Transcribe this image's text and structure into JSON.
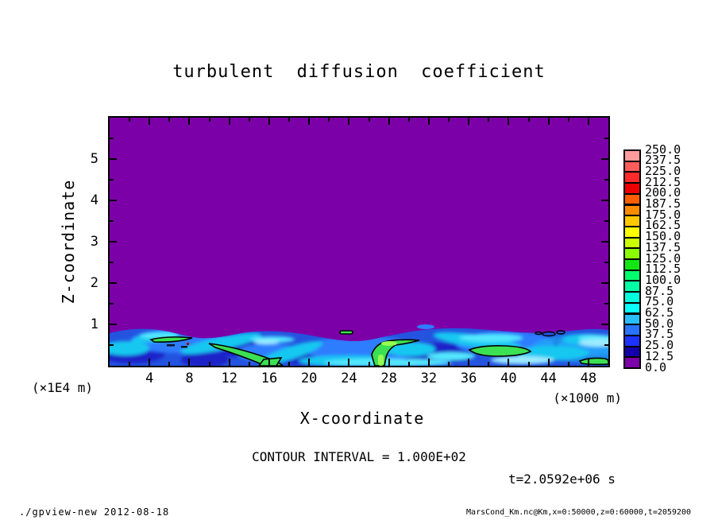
{
  "page": {
    "background": "#FFFFFF"
  },
  "chart_data": {
    "type": "filled-contour",
    "title": "turbulent diffusion coefficient",
    "x_axis": {
      "label": "X-coordinate",
      "unit_label": "(×1000 m)",
      "range": [
        0,
        50
      ],
      "major_ticks": [
        4,
        8,
        12,
        16,
        20,
        24,
        28,
        32,
        36,
        40,
        44,
        48
      ],
      "minor_step": 2
    },
    "y_axis": {
      "label": "Z-coordinate",
      "unit_label": "(×1E4 m)",
      "range": [
        0,
        6
      ],
      "major_ticks": [
        1,
        2,
        3,
        4,
        5
      ],
      "minor_step": 0.5
    },
    "annotations": {
      "contour_interval": "CONTOUR INTERVAL = 1.000E+02",
      "time": "t=2.0592e+06 s"
    },
    "colorbar": {
      "levels_top_to_bottom": [
        "250.0",
        "237.5",
        "225.0",
        "212.5",
        "200.0",
        "187.5",
        "175.0",
        "162.5",
        "150.0",
        "137.5",
        "125.0",
        "112.5",
        "100.0",
        "87.5",
        "75.0",
        "62.5",
        "50.0",
        "37.5",
        "25.0",
        "12.5",
        "0.0"
      ],
      "colors_top_to_bottom": [
        "#FF9B9B",
        "#FF5C5C",
        "#FF2A2A",
        "#EE0000",
        "#FF5E00",
        "#FF8C00",
        "#FFC800",
        "#FFFF00",
        "#CCFF00",
        "#8CFF00",
        "#14E614",
        "#00FF6E",
        "#00FFA5",
        "#00FFDC",
        "#0AFFFF",
        "#28BEFF",
        "#2873FF",
        "#1E32FF",
        "#1400AA",
        "#7C00A8"
      ]
    },
    "field": {
      "background_value": 0,
      "description": "Diffusion coefficient is ~0 (purple) above z≈8000 m; a turbulent boundary layer below z≈8000 m holds values ~12.5-150 (blues/cyans) with green patches outlined by the 100-level contour line; small detached blue/green specks near the layer top.",
      "boundary_layer_top_z_m": 8000,
      "colors": {
        "bg": "#7C00A8",
        "base": "#2453E0",
        "dark": "#1A20C8",
        "mid": "#2E7DFF",
        "cyan": "#19C8F0",
        "bcyan": "#52E8FF",
        "pale": "#9BEBFF",
        "green": "#3CE053",
        "gcore": "#96FF50",
        "line": "#000000"
      }
    }
  },
  "footer": {
    "left": "./gpview-new  2012-08-18",
    "right": "MarsCond_Km.nc@Km,x=0:50000,z=0:60000,t=2059200"
  }
}
